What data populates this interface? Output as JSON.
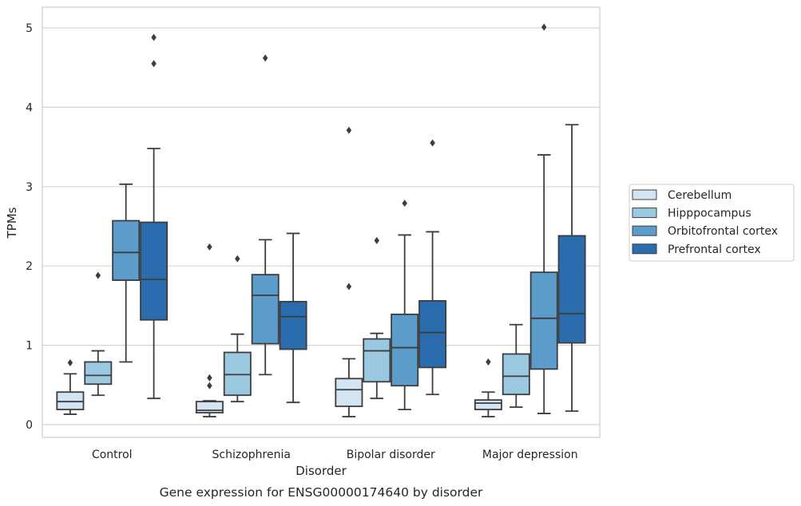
{
  "chart_data": {
    "type": "boxplot",
    "title": "",
    "caption": "Gene expression for ENSG00000174640 by disorder",
    "xlabel": "Disorder",
    "ylabel": "TPMs",
    "ylim": [
      -0.15,
      5.27
    ],
    "yticks": [
      0,
      1,
      2,
      3,
      4,
      5
    ],
    "grid": "horizontal",
    "legend_position": "right",
    "categories": [
      "Control",
      "Schizophrenia",
      "Bipolar disorder",
      "Major depression"
    ],
    "series": [
      {
        "name": "Cerebellum",
        "color": "#d3e4f3",
        "boxes": [
          {
            "whisker_low": 0.13,
            "q1": 0.19,
            "median": 0.29,
            "q3": 0.41,
            "whisker_high": 0.64,
            "outliers": [
              0.78
            ]
          },
          {
            "whisker_low": 0.1,
            "q1": 0.15,
            "median": 0.18,
            "q3": 0.29,
            "whisker_high": 0.3,
            "outliers": [
              0.59,
              0.49,
              2.24
            ]
          },
          {
            "whisker_low": 0.1,
            "q1": 0.23,
            "median": 0.44,
            "q3": 0.58,
            "whisker_high": 0.83,
            "outliers": [
              1.74,
              3.71
            ]
          },
          {
            "whisker_low": 0.1,
            "q1": 0.19,
            "median": 0.27,
            "q3": 0.31,
            "whisker_high": 0.41,
            "outliers": [
              0.79
            ]
          }
        ]
      },
      {
        "name": "Hipppocampus",
        "color": "#9ac8e0",
        "boxes": [
          {
            "whisker_low": 0.37,
            "q1": 0.51,
            "median": 0.62,
            "q3": 0.79,
            "whisker_high": 0.93,
            "outliers": [
              1.88
            ]
          },
          {
            "whisker_low": 0.29,
            "q1": 0.37,
            "median": 0.63,
            "q3": 0.91,
            "whisker_high": 1.14,
            "outliers": [
              2.09
            ]
          },
          {
            "whisker_low": 0.33,
            "q1": 0.54,
            "median": 0.93,
            "q3": 1.08,
            "whisker_high": 1.15,
            "outliers": [
              2.32
            ]
          },
          {
            "whisker_low": 0.22,
            "q1": 0.38,
            "median": 0.61,
            "q3": 0.89,
            "whisker_high": 1.26,
            "outliers": []
          }
        ]
      },
      {
        "name": "Orbitofrontal cortex",
        "color": "#5b9cca",
        "boxes": [
          {
            "whisker_low": 0.79,
            "q1": 1.82,
            "median": 2.17,
            "q3": 2.57,
            "whisker_high": 3.03,
            "outliers": []
          },
          {
            "whisker_low": 0.63,
            "q1": 1.02,
            "median": 1.63,
            "q3": 1.89,
            "whisker_high": 2.33,
            "outliers": [
              4.62
            ]
          },
          {
            "whisker_low": 0.19,
            "q1": 0.49,
            "median": 0.97,
            "q3": 1.39,
            "whisker_high": 2.39,
            "outliers": [
              2.79
            ]
          },
          {
            "whisker_low": 0.14,
            "q1": 0.7,
            "median": 1.34,
            "q3": 1.92,
            "whisker_high": 3.4,
            "outliers": [
              5.01
            ]
          }
        ]
      },
      {
        "name": "Prefrontal cortex",
        "color": "#2a6cae",
        "boxes": [
          {
            "whisker_low": 0.33,
            "q1": 1.32,
            "median": 1.83,
            "q3": 2.55,
            "whisker_high": 3.48,
            "outliers": [
              4.55,
              4.88
            ]
          },
          {
            "whisker_low": 0.28,
            "q1": 0.95,
            "median": 1.36,
            "q3": 1.55,
            "whisker_high": 2.41,
            "outliers": []
          },
          {
            "whisker_low": 0.38,
            "q1": 0.72,
            "median": 1.16,
            "q3": 1.56,
            "whisker_high": 2.43,
            "outliers": [
              3.55
            ]
          },
          {
            "whisker_low": 0.17,
            "q1": 1.03,
            "median": 1.4,
            "q3": 2.38,
            "whisker_high": 3.78,
            "outliers": []
          }
        ]
      }
    ]
  }
}
